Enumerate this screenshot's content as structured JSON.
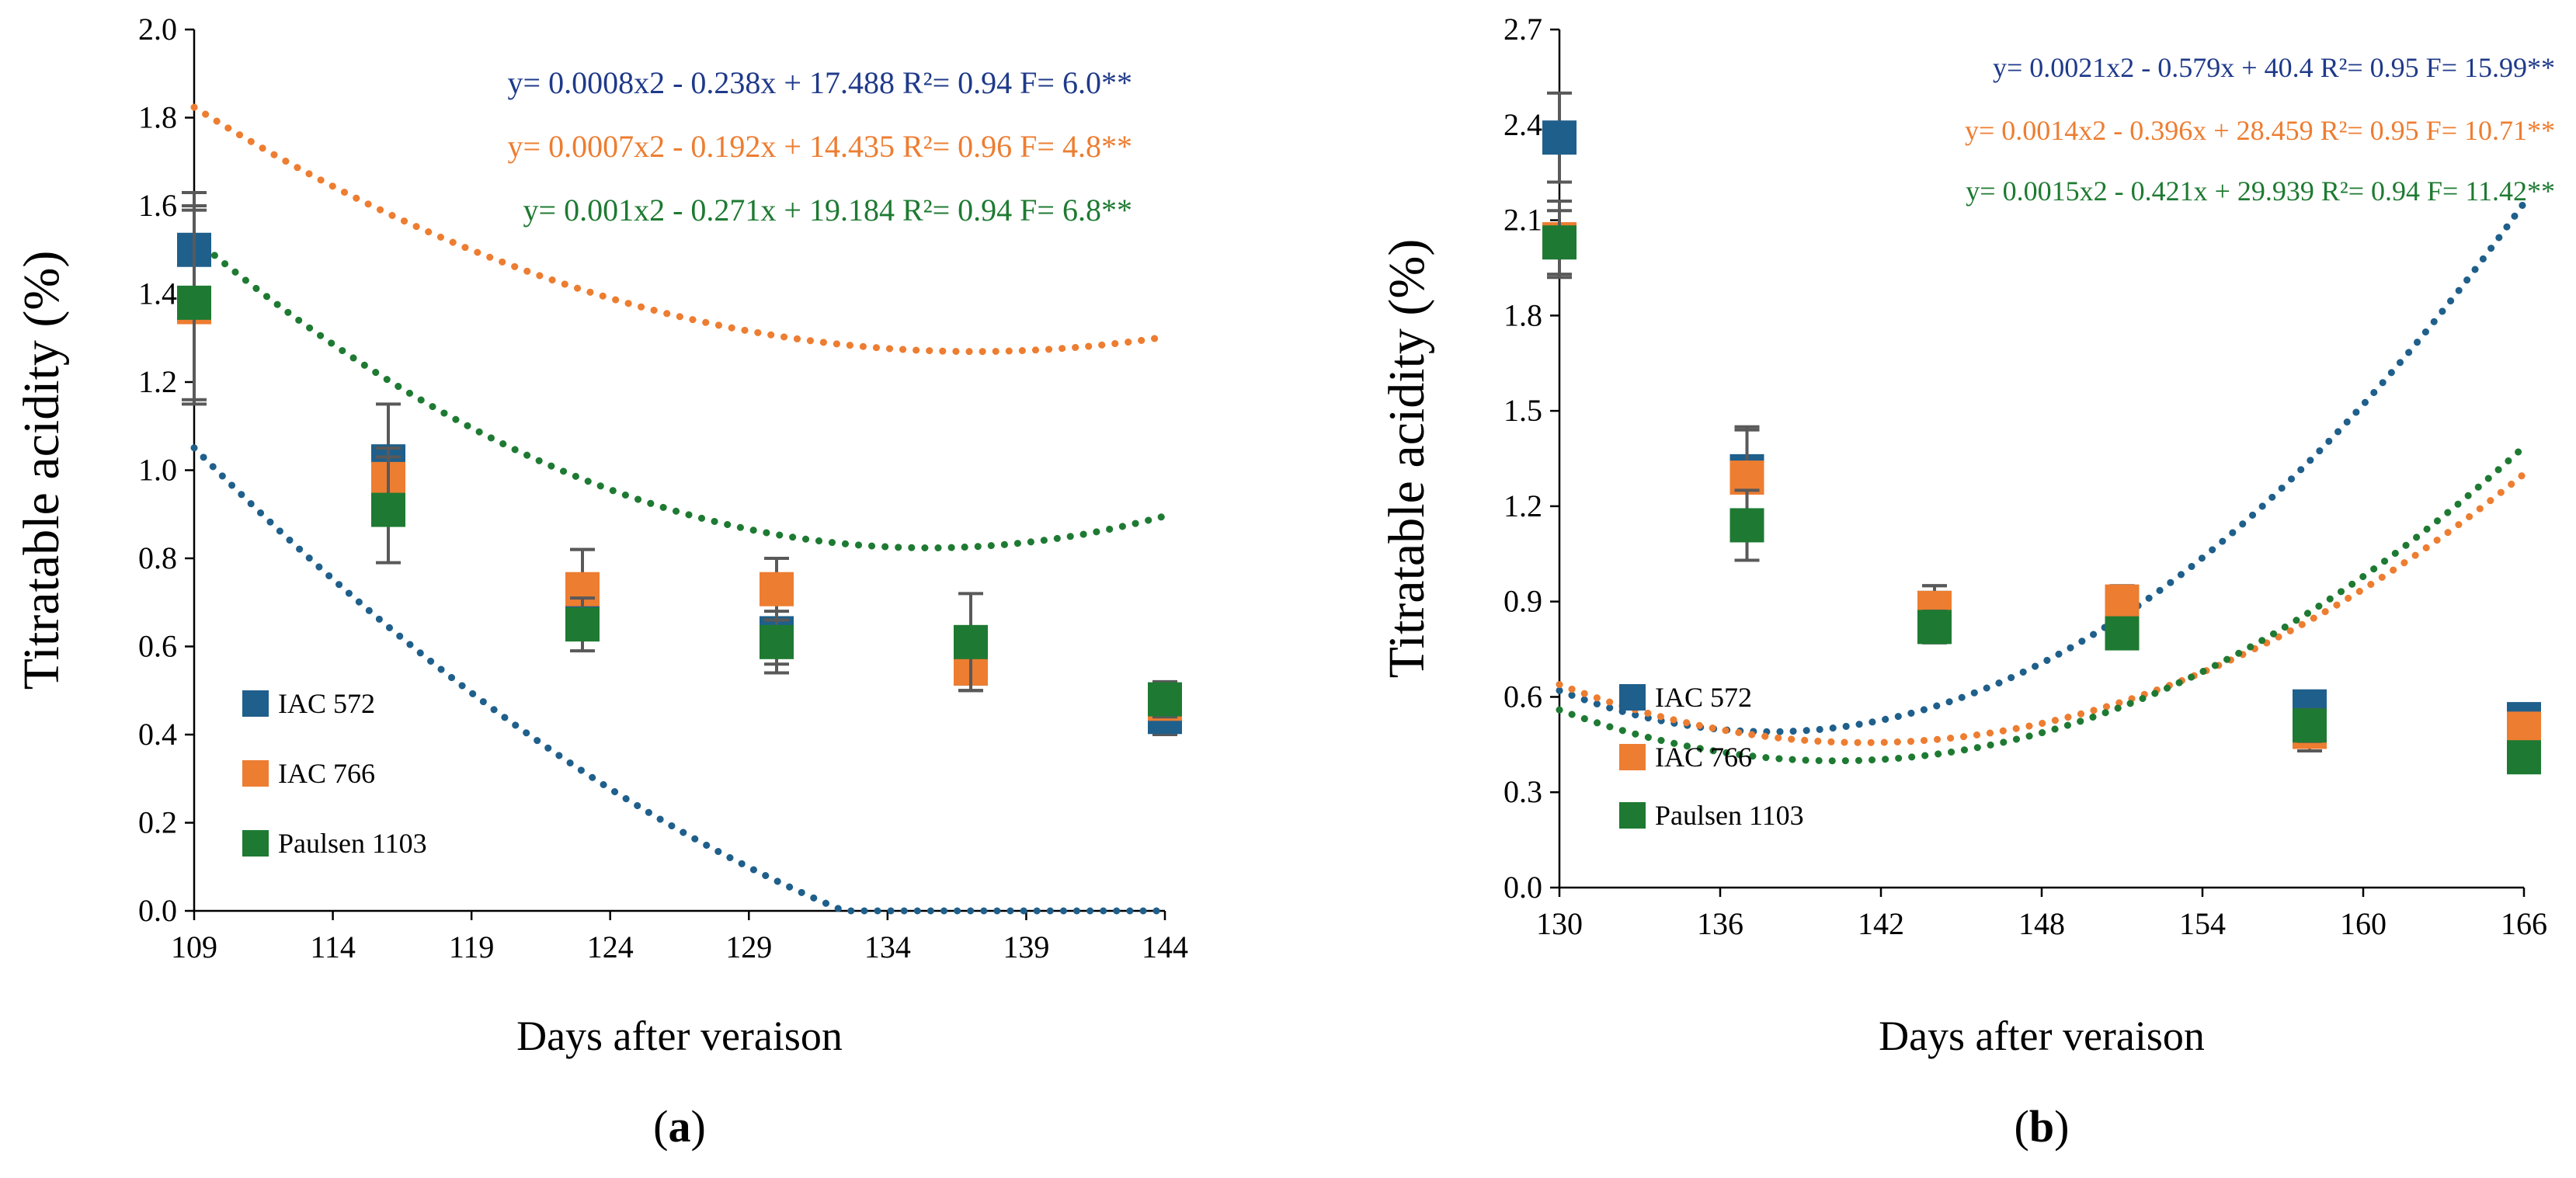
{
  "colors": {
    "IAC 572": "#1f5f8b",
    "IAC 766": "#ed7d31",
    "Paulsen 1103": "#1e7a32",
    "eq_IAC 572": "#1f3a8a",
    "eq_IAC 766": "#ed7d31",
    "eq_Paulsen 1103": "#1e7a32",
    "errorbar": "#595959"
  },
  "chart_data": [
    {
      "panel_label": "a",
      "type": "scatter",
      "xlabel": "Days after veraison",
      "ylabel": "Titratable acidity (%)",
      "xlim": [
        109,
        144
      ],
      "ylim": [
        0,
        2.0
      ],
      "xticks": [
        "109",
        "114",
        "119",
        "124",
        "129",
        "134",
        "139",
        "144"
      ],
      "yticks": [
        "0.0",
        "0.2",
        "0.4",
        "0.6",
        "0.8",
        "1.0",
        "1.2",
        "1.4",
        "1.6",
        "1.8",
        "2.0"
      ],
      "legend": "bottom-left",
      "trendline": "dotted polynomial (order 2)",
      "series": [
        {
          "name": "IAC 572",
          "x": [
            109,
            116,
            123,
            130,
            137,
            144
          ],
          "y": [
            1.5,
            1.02,
            0.72,
            0.63,
            0.55,
            0.44
          ],
          "err": [
            0.13,
            0.13,
            0.1,
            0.07,
            0.05,
            0.04
          ],
          "coef": [
            0.0008,
            -0.238,
            17.488
          ],
          "equation": "y= 0.0008x2 - 0.238x + 17.488 R²= 0.94 F= 6.0**"
        },
        {
          "name": "IAC 766",
          "x": [
            109,
            116,
            123,
            130,
            137,
            144
          ],
          "y": [
            1.37,
            0.98,
            0.73,
            0.73,
            0.55,
            0.47
          ],
          "err": [
            0.22,
            0.07,
            0.09,
            0.07,
            0.05,
            0.03
          ],
          "coef": [
            0.0007,
            -0.192,
            14.435
          ],
          "equation": "y= 0.0007x2 - 0.192x + 14.435 R²= 0.96 F= 4.8**"
        },
        {
          "name": "Paulsen 1103",
          "x": [
            109,
            116,
            123,
            130,
            137,
            144
          ],
          "y": [
            1.38,
            0.91,
            0.65,
            0.61,
            0.61,
            0.48
          ],
          "err": [
            0.22,
            0.12,
            0.06,
            0.07,
            0.11,
            0.04
          ],
          "coef": [
            0.001,
            -0.271,
            19.184
          ],
          "equation": "y= 0.001x2 - 0.271x + 19.184 R²= 0.94 F= 6.8**"
        }
      ]
    },
    {
      "panel_label": "b",
      "type": "scatter",
      "xlabel": "Days after veraison",
      "ylabel": "Titratable acidity (%)",
      "xlim": [
        130,
        166
      ],
      "ylim": [
        0,
        2.7
      ],
      "xticks": [
        "130",
        "136",
        "142",
        "148",
        "154",
        "160",
        "166"
      ],
      "yticks": [
        "0.0",
        "0.3",
        "0.6",
        "0.9",
        "1.2",
        "1.5",
        "1.8",
        "2.1",
        "2.4",
        "2.7"
      ],
      "legend": "bottom-left",
      "trendline": "dotted polynomial (order 2)",
      "series": [
        {
          "name": "IAC 572",
          "x": [
            130,
            137,
            144,
            151,
            158,
            166
          ],
          "y": [
            2.36,
            1.31,
            0.88,
            0.85,
            0.57,
            0.53
          ],
          "err": [
            0.14,
            0.13,
            0.07,
            0.06,
            0.04,
            0.04
          ],
          "coef": [
            0.0021,
            -0.579,
            40.4
          ],
          "equation": "y= 0.0021x2 - 0.579x + 40.4 R²= 0.95 F= 15.99**"
        },
        {
          "name": "IAC 766",
          "x": [
            130,
            137,
            144,
            151,
            158,
            166
          ],
          "y": [
            2.04,
            1.29,
            0.88,
            0.9,
            0.49,
            0.5
          ],
          "err": [
            0.12,
            0.16,
            0.07,
            0.05,
            0.06,
            0.03
          ],
          "coef": [
            0.0014,
            -0.396,
            28.459
          ],
          "equation": "y= 0.0014x2 - 0.396x + 28.459 R²= 0.95 F= 10.71**"
        },
        {
          "name": "Paulsen 1103",
          "x": [
            130,
            137,
            144,
            151,
            158,
            166
          ],
          "y": [
            2.03,
            1.14,
            0.82,
            0.8,
            0.51,
            0.41
          ],
          "err": [
            0.1,
            0.11,
            0.05,
            0.04,
            0.05,
            0.03
          ],
          "coef": [
            0.0015,
            -0.421,
            29.939
          ],
          "equation": "y= 0.0015x2 - 0.421x + 29.939 R²= 0.94 F= 11.42**"
        }
      ]
    }
  ]
}
